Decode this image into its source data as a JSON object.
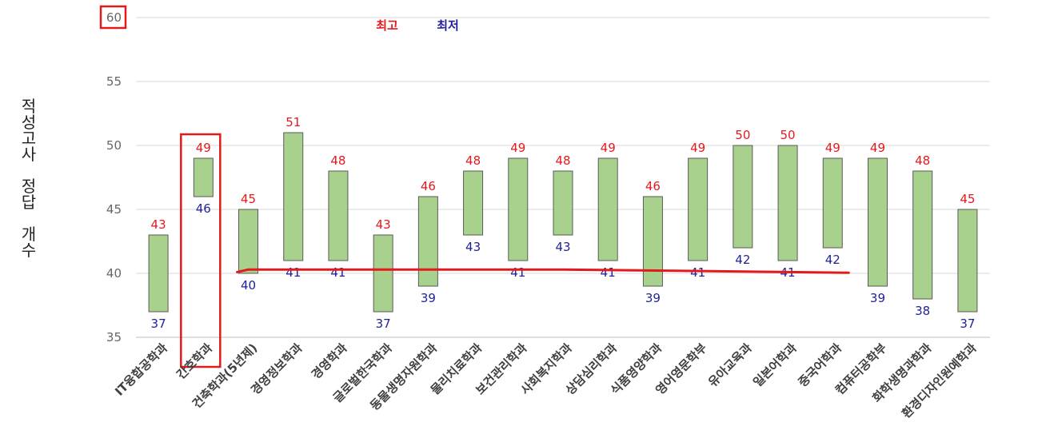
{
  "colors": {
    "bar_fill": "#a9d18e",
    "bar_stroke": "#5a5a5a",
    "max_label": "#e31a1c",
    "min_label": "#1f1f9a",
    "highlight": "#e31a1c",
    "grid": "#d9d9d9"
  },
  "chart_data": {
    "type": "bar",
    "subtype": "floating-range",
    "ylabel": "적성고사 정답 개수",
    "ylabel_lines": [
      "적",
      "성",
      "고",
      "사",
      "",
      "정",
      "답",
      "",
      "개",
      "수"
    ],
    "ylim": [
      35,
      60
    ],
    "yticks": [
      "35",
      "40",
      "45",
      "50",
      "55",
      "60"
    ],
    "grid": true,
    "legend_position": "top-center",
    "legend": [
      {
        "label": "최고",
        "color": "#e31a1c"
      },
      {
        "label": "최저",
        "color": "#1f1f9a"
      }
    ],
    "categories": [
      "IT융합공학과",
      "간호학과",
      "건축학과(5년제)",
      "경영정보학과",
      "경영학과",
      "글로벌한국학과",
      "동물생명자원학과",
      "물리치료학과",
      "보건관리학과",
      "사회복지학과",
      "상담심리학과",
      "식품영양학과",
      "영어영문학부",
      "유아교육과",
      "일본어학과",
      "중국어학과",
      "컴퓨터공학부",
      "화학생명과학과",
      "환경디자인원예학과"
    ],
    "series": [
      {
        "name": "최고",
        "values": [
          43,
          49,
          45,
          51,
          48,
          43,
          46,
          48,
          49,
          48,
          49,
          46,
          49,
          50,
          50,
          49,
          49,
          48,
          45
        ]
      },
      {
        "name": "최저",
        "values": [
          37,
          46,
          40,
          41,
          41,
          37,
          39,
          43,
          41,
          43,
          41,
          39,
          41,
          42,
          41,
          42,
          39,
          38,
          37
        ]
      }
    ],
    "max_labels": [
      "43",
      "49",
      "45",
      "51",
      "48",
      "43",
      "46",
      "48",
      "49",
      "48",
      "49",
      "46",
      "49",
      "50",
      "50",
      "49",
      "49",
      "48",
      "45"
    ],
    "min_labels": [
      "37",
      "46",
      "40",
      "41",
      "41",
      "37",
      "39",
      "43",
      "41",
      "43",
      "41",
      "39",
      "41",
      "42",
      "41",
      "42",
      "39",
      "38",
      "37"
    ],
    "annotations": {
      "highlight_tick": "60",
      "highlight_category": "간호학과",
      "red_line": {
        "from": {
          "category": "건축학과(5년제)",
          "value": 40.1
        },
        "level": 40.3,
        "to": {
          "category": "중국어학과",
          "value": 40.05
        }
      }
    }
  }
}
